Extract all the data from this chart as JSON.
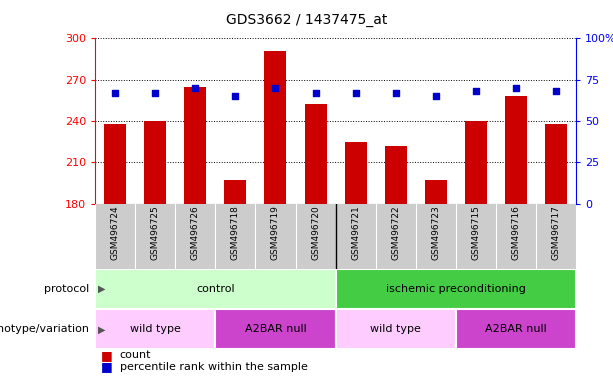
{
  "title": "GDS3662 / 1437475_at",
  "samples": [
    "GSM496724",
    "GSM496725",
    "GSM496726",
    "GSM496718",
    "GSM496719",
    "GSM496720",
    "GSM496721",
    "GSM496722",
    "GSM496723",
    "GSM496715",
    "GSM496716",
    "GSM496717"
  ],
  "counts": [
    238,
    240,
    265,
    197,
    291,
    252,
    225,
    222,
    197,
    240,
    258,
    238
  ],
  "percentiles": [
    67,
    67,
    70,
    65,
    70,
    67,
    67,
    67,
    65,
    68,
    70,
    68
  ],
  "ylim_left": [
    180,
    300
  ],
  "ylim_right": [
    0,
    100
  ],
  "yticks_left": [
    180,
    210,
    240,
    270,
    300
  ],
  "yticks_right": [
    0,
    25,
    50,
    75,
    100
  ],
  "bar_color": "#CC0000",
  "dot_color": "#0000CC",
  "bar_baseline": 180,
  "protocol_color_light": "#CCFFCC",
  "protocol_color_dark": "#44CC44",
  "genotype_color_light": "#FFCCFF",
  "genotype_color_dark": "#CC44CC",
  "legend_count_label": "count",
  "legend_percentile_label": "percentile rank within the sample",
  "xlabel_protocol": "protocol",
  "xlabel_genotype": "genotype/variation",
  "sample_area_color": "#CCCCCC",
  "proto_entries": [
    {
      "label": "control",
      "start": 0,
      "end": 5,
      "light": true
    },
    {
      "label": "ischemic preconditioning",
      "start": 6,
      "end": 11,
      "light": false
    }
  ],
  "geno_entries": [
    {
      "label": "wild type",
      "start": 0,
      "end": 2,
      "light": true
    },
    {
      "label": "A2BAR null",
      "start": 3,
      "end": 5,
      "light": false
    },
    {
      "label": "wild type",
      "start": 6,
      "end": 8,
      "light": true
    },
    {
      "label": "A2BAR null",
      "start": 9,
      "end": 11,
      "light": false
    }
  ]
}
